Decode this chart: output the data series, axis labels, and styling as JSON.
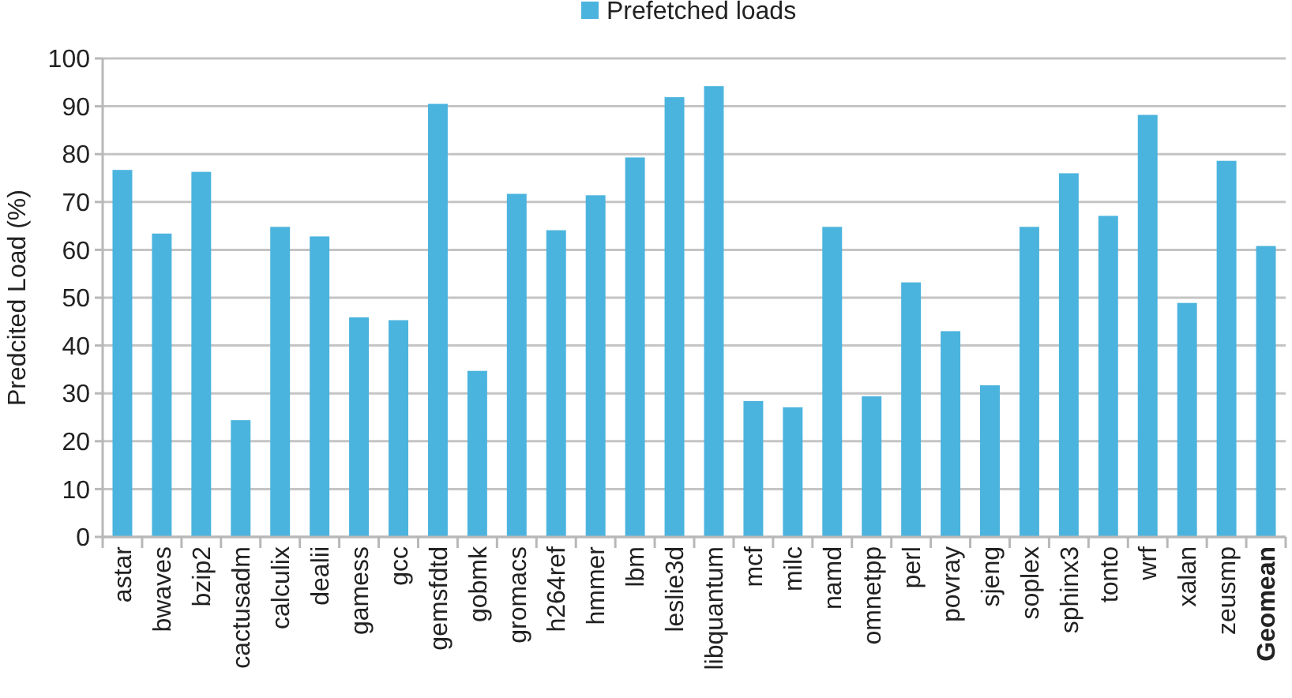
{
  "chart_data": {
    "type": "bar",
    "ylabel": "Predcited Load (%)",
    "categories": [
      "astar",
      "bwaves",
      "bzip2",
      "cactusadm",
      "calculix",
      "dealii",
      "gamess",
      "gcc",
      "gemsfdtd",
      "gobmk",
      "gromacs",
      "h264ref",
      "hmmer",
      "lbm",
      "leslie3d",
      "libquantum",
      "mcf",
      "milc",
      "namd",
      "omnetpp",
      "perl",
      "povray",
      "sjeng",
      "soplex",
      "sphinx3",
      "tonto",
      "wrf",
      "xalan",
      "zeusmp",
      "Geomean"
    ],
    "series": [
      {
        "name": "Prefetched loads",
        "color": "#4bb4de",
        "values": [
          76.7,
          63.4,
          76.3,
          24.4,
          64.8,
          62.8,
          45.9,
          45.3,
          90.5,
          34.7,
          71.7,
          64.1,
          71.4,
          79.3,
          91.9,
          94.2,
          28.4,
          27.1,
          64.8,
          29.4,
          53.2,
          43.0,
          31.7,
          64.8,
          76.0,
          67.1,
          88.2,
          48.9,
          78.6,
          60.8
        ]
      }
    ],
    "ylim": [
      0,
      100
    ],
    "yticks": [
      0,
      10,
      20,
      30,
      40,
      50,
      60,
      70,
      80,
      90,
      100
    ],
    "grid": "y",
    "legend": "top"
  }
}
